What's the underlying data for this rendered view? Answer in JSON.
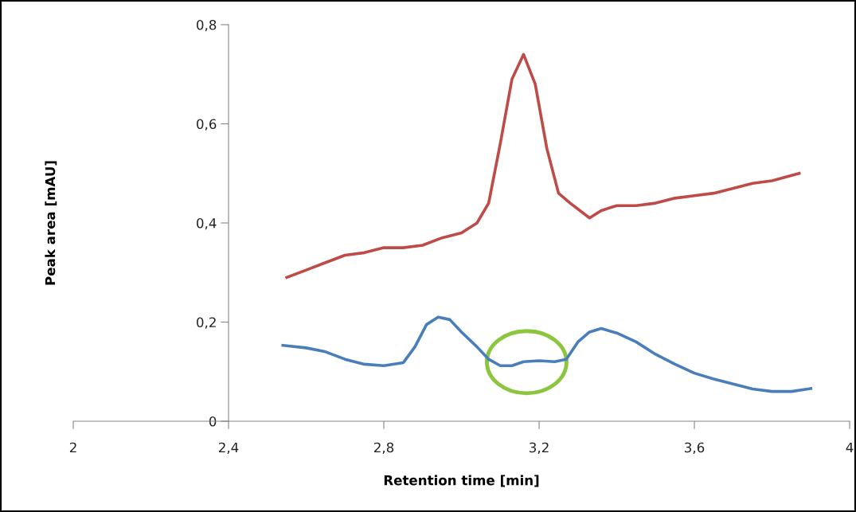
{
  "chart_data": {
    "type": "line",
    "xlabel": "Retention time [min]",
    "ylabel": "Peak area [mAU]",
    "xlim": [
      2,
      4
    ],
    "ylim": [
      0,
      0.8
    ],
    "xticks": [
      2,
      {
        "value": 2.4,
        "label": "2,4"
      },
      {
        "value": 2.8,
        "label": "2,8"
      },
      {
        "value": 3.2,
        "label": "3,2"
      },
      {
        "value": 3.6,
        "label": "3,6"
      },
      4
    ],
    "yticks": [
      0,
      {
        "value": 0.2,
        "label": "0,2"
      },
      {
        "value": 0.4,
        "label": "0,4"
      },
      {
        "value": 0.6,
        "label": "0,6"
      },
      {
        "value": 0.8,
        "label": "0,8"
      }
    ],
    "grid": false,
    "legend": false,
    "marker": "none",
    "line_style": "solid",
    "series": [
      {
        "color": "#be4b48",
        "x": [
          2.55,
          2.6,
          2.65,
          2.7,
          2.75,
          2.8,
          2.85,
          2.9,
          2.95,
          3.0,
          3.04,
          3.07,
          3.1,
          3.13,
          3.16,
          3.19,
          3.22,
          3.25,
          3.28,
          3.33,
          3.36,
          3.4,
          3.45,
          3.5,
          3.55,
          3.6,
          3.65,
          3.7,
          3.75,
          3.8,
          3.87
        ],
        "values": [
          0.29,
          0.305,
          0.32,
          0.335,
          0.34,
          0.35,
          0.35,
          0.355,
          0.37,
          0.38,
          0.4,
          0.44,
          0.56,
          0.69,
          0.74,
          0.68,
          0.55,
          0.46,
          0.44,
          0.41,
          0.425,
          0.435,
          0.435,
          0.44,
          0.45,
          0.455,
          0.46,
          0.47,
          0.48,
          0.485,
          0.5
        ]
      },
      {
        "color": "#4a7ebb",
        "x": [
          2.54,
          2.6,
          2.65,
          2.7,
          2.75,
          2.8,
          2.85,
          2.88,
          2.91,
          2.94,
          2.97,
          3.0,
          3.04,
          3.07,
          3.1,
          3.13,
          3.16,
          3.2,
          3.24,
          3.27,
          3.3,
          3.33,
          3.36,
          3.4,
          3.45,
          3.5,
          3.55,
          3.6,
          3.65,
          3.7,
          3.75,
          3.8,
          3.85,
          3.9
        ],
        "values": [
          0.153,
          0.148,
          0.14,
          0.125,
          0.115,
          0.112,
          0.118,
          0.15,
          0.195,
          0.21,
          0.205,
          0.18,
          0.15,
          0.125,
          0.112,
          0.112,
          0.12,
          0.122,
          0.12,
          0.125,
          0.16,
          0.18,
          0.187,
          0.178,
          0.16,
          0.135,
          0.115,
          0.097,
          0.085,
          0.075,
          0.065,
          0.06,
          0.06,
          0.066
        ]
      }
    ]
  }
}
